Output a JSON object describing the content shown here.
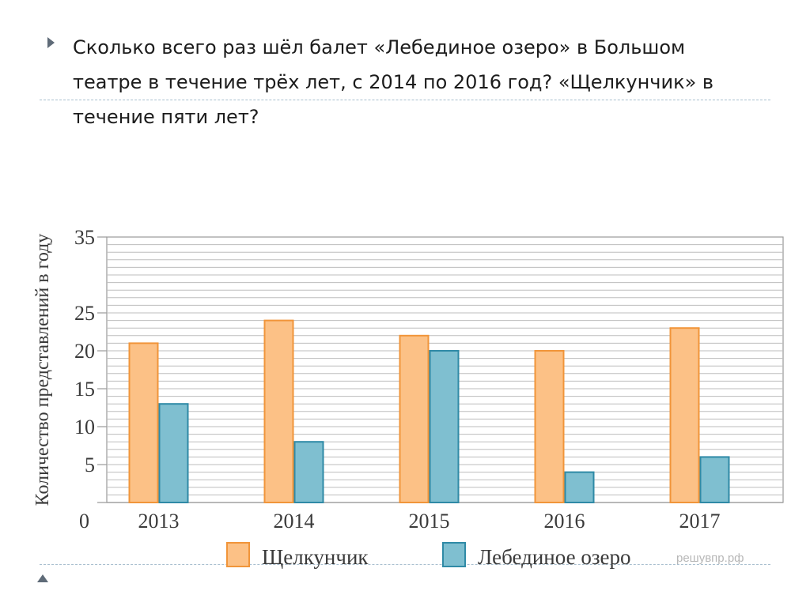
{
  "question": {
    "text": "Сколько всего раз шёл балет «Лебединое озеро» в Большом театре в течение трёх лет, с 2014 по 2016 год? «Щелкунчик» в течение пяти лет?"
  },
  "icons": {
    "bullet": "triangle-right-bullet-icon",
    "corner": "triangle-up-icon"
  },
  "colors": {
    "accent_bullet": "#5f6b78",
    "nutcracker_fill": "#fcc186",
    "nutcracker_stroke": "#f1953a",
    "swan_fill": "#7fbfd0",
    "swan_stroke": "#2f8aa6",
    "grid": "#9a9a9a",
    "text": "#3a3a3a"
  },
  "chart_data": {
    "type": "bar",
    "categories": [
      "2013",
      "2014",
      "2015",
      "2016",
      "2017"
    ],
    "series": [
      {
        "name": "Щелкунчик",
        "values": [
          21,
          24,
          22,
          20,
          23
        ]
      },
      {
        "name": "Лебединое озеро",
        "values": [
          13,
          8,
          20,
          4,
          6
        ]
      }
    ],
    "ylabel": "Количество представлений в году",
    "xlabel": "",
    "title": "",
    "yticks": [
      0,
      5,
      10,
      15,
      20,
      25,
      35
    ],
    "ylim": [
      0,
      35
    ],
    "grid": true,
    "grid_step": 1,
    "legend": "bottom",
    "watermark": "решувпр.рф"
  }
}
